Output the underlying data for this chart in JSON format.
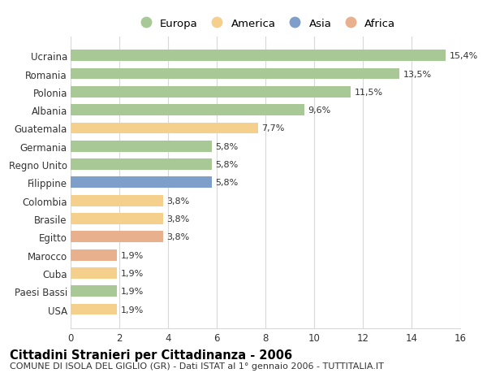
{
  "categories": [
    "Ucraina",
    "Romania",
    "Polonia",
    "Albania",
    "Guatemala",
    "Germania",
    "Regno Unito",
    "Filippine",
    "Colombia",
    "Brasile",
    "Egitto",
    "Marocco",
    "Cuba",
    "Paesi Bassi",
    "USA"
  ],
  "values": [
    15.4,
    13.5,
    11.5,
    9.6,
    7.7,
    5.8,
    5.8,
    5.8,
    3.8,
    3.8,
    3.8,
    1.9,
    1.9,
    1.9,
    1.9
  ],
  "labels": [
    "15,4%",
    "13,5%",
    "11,5%",
    "9,6%",
    "7,7%",
    "5,8%",
    "5,8%",
    "5,8%",
    "3,8%",
    "3,8%",
    "3,8%",
    "1,9%",
    "1,9%",
    "1,9%",
    "1,9%"
  ],
  "continents": [
    "Europa",
    "Europa",
    "Europa",
    "Europa",
    "America",
    "Europa",
    "Europa",
    "Asia",
    "America",
    "America",
    "Africa",
    "Africa",
    "America",
    "Europa",
    "America"
  ],
  "colors": {
    "Europa": "#a8c896",
    "America": "#f5d08c",
    "Asia": "#7e9fc9",
    "Africa": "#e8b08c"
  },
  "legend_order": [
    "Europa",
    "America",
    "Asia",
    "Africa"
  ],
  "title": "Cittadini Stranieri per Cittadinanza - 2006",
  "subtitle": "COMUNE DI ISOLA DEL GIGLIO (GR) - Dati ISTAT al 1° gennaio 2006 - TUTTITALIA.IT",
  "xlim": [
    0,
    16
  ],
  "xticks": [
    0,
    2,
    4,
    6,
    8,
    10,
    12,
    14,
    16
  ],
  "background_color": "#ffffff",
  "grid_color": "#d8d8d8",
  "bar_height": 0.62,
  "text_color": "#333333",
  "title_fontsize": 10.5,
  "subtitle_fontsize": 8,
  "tick_fontsize": 8.5,
  "label_fontsize": 8,
  "legend_fontsize": 9.5
}
